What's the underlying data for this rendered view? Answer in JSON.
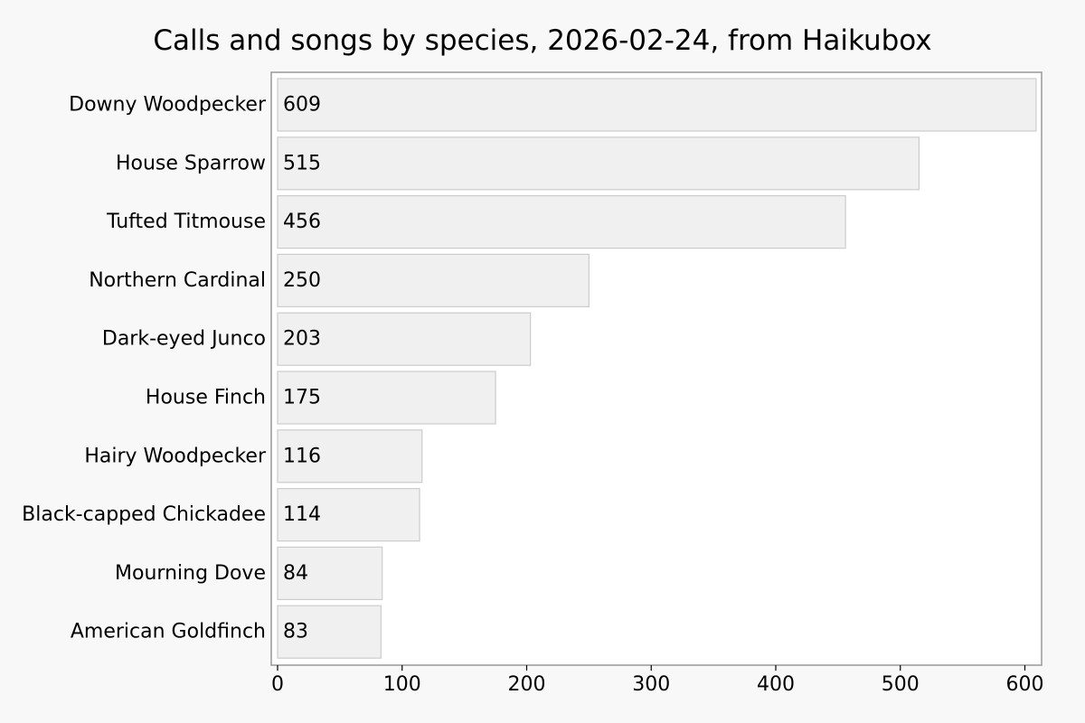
{
  "chart_data": {
    "type": "bar",
    "orientation": "horizontal",
    "title": "Calls and songs by species, 2026-02-24, from Haikubox",
    "xlabel": "",
    "ylabel": "",
    "categories": [
      "Downy Woodpecker",
      "House Sparrow",
      "Tufted Titmouse",
      "Northern Cardinal",
      "Dark-eyed Junco",
      "House Finch",
      "Hairy Woodpecker",
      "Black-capped Chickadee",
      "Mourning Dove",
      "American Goldfinch"
    ],
    "values": [
      609,
      515,
      456,
      250,
      203,
      175,
      116,
      114,
      84,
      83
    ],
    "xlim": [
      0,
      615
    ],
    "xticks": [
      0,
      100,
      200,
      300,
      400,
      500,
      600
    ],
    "grid": false,
    "legend": "none",
    "data_labels": "inside-left"
  },
  "colors": {
    "page_background": "#f8f8f8",
    "plot_background": "#ffffff",
    "bar_fill": "#f0f0f0",
    "bar_stroke": "#cccccc",
    "frame": "#999999",
    "text": "#000000"
  }
}
